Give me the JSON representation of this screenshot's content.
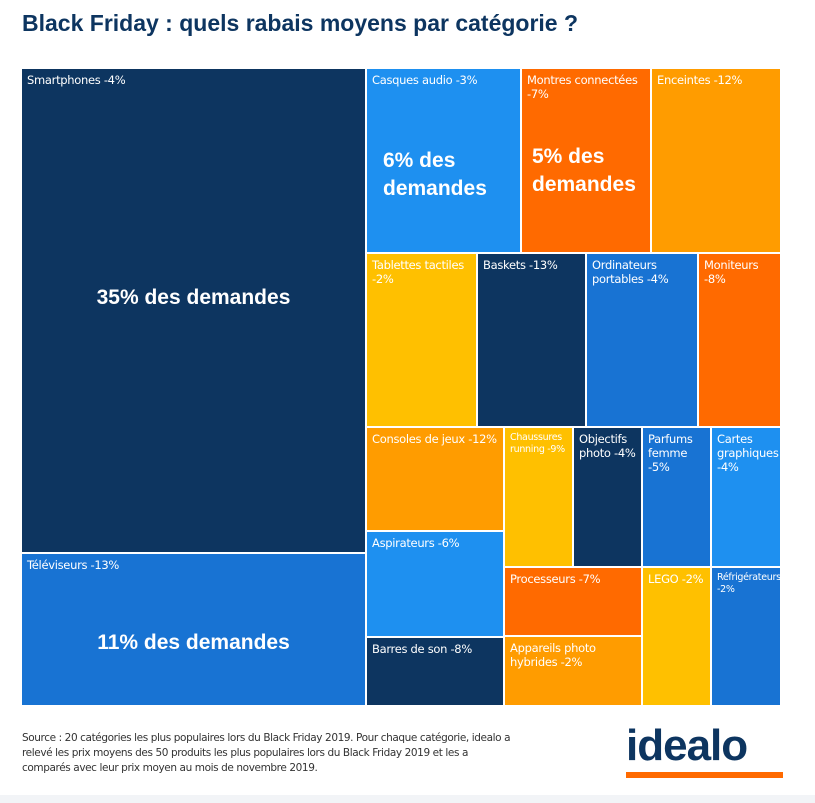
{
  "chart_data": {
    "type": "treemap",
    "title": "Black Friday : quels rabais moyens par catégorie ?",
    "colors": {
      "navy": "#0d3560",
      "blue": "#1873d3",
      "lightblue": "#1e90f0",
      "orange": "#ff6a00",
      "amber": "#ff9c00",
      "yellow": "#ffc000"
    },
    "tiles": [
      {
        "label": "Smartphones -4%",
        "category": "Smartphones",
        "discount_pct": -4,
        "share_label": "35% des demandes",
        "share_pct": 35,
        "color": "#0d3560"
      },
      {
        "label": "Téléviseurs -13%",
        "category": "Téléviseurs",
        "discount_pct": -13,
        "share_label": "11% des demandes",
        "share_pct": 11,
        "color": "#1873d3"
      },
      {
        "label": "Casques audio -3%",
        "category": "Casques audio",
        "discount_pct": -3,
        "share_label": "6% des demandes",
        "share_pct": 6,
        "color": "#1e90f0"
      },
      {
        "label": "Montres connectées -7%",
        "category": "Montres connectées",
        "discount_pct": -7,
        "share_label": "5% des demandes",
        "share_pct": 5,
        "color": "#ff6a00"
      },
      {
        "label": "Enceintes -12%",
        "category": "Enceintes",
        "discount_pct": -12,
        "color": "#ff9c00"
      },
      {
        "label": "Tablettes tactiles -2%",
        "category": "Tablettes tactiles",
        "discount_pct": -2,
        "color": "#ffc000"
      },
      {
        "label": "Baskets -13%",
        "category": "Baskets",
        "discount_pct": -13,
        "color": "#0d3560"
      },
      {
        "label": "Ordinateurs portables -4%",
        "category": "Ordinateurs portables",
        "discount_pct": -4,
        "color": "#1873d3"
      },
      {
        "label": "Moniteurs -8%",
        "category": "Moniteurs",
        "discount_pct": -8,
        "color": "#ff6a00"
      },
      {
        "label": "Consoles de jeux -12%",
        "category": "Consoles de jeux",
        "discount_pct": -12,
        "color": "#ff9c00"
      },
      {
        "label": "Aspirateurs -6%",
        "category": "Aspirateurs",
        "discount_pct": -6,
        "color": "#1e90f0"
      },
      {
        "label": "Barres de son -8%",
        "category": "Barres de son",
        "discount_pct": -8,
        "color": "#0d3560"
      },
      {
        "label": "Chaussures running -9%",
        "category": "Chaussures running",
        "discount_pct": -9,
        "color": "#ffc000"
      },
      {
        "label": "Objectifs photo -4%",
        "category": "Objectifs photo",
        "discount_pct": -4,
        "color": "#0d3560"
      },
      {
        "label": "Parfums femme -5%",
        "category": "Parfums femme",
        "discount_pct": -5,
        "color": "#1873d3"
      },
      {
        "label": "Cartes graphiques -4%",
        "category": "Cartes graphiques",
        "discount_pct": -4,
        "color": "#1e90f0"
      },
      {
        "label": "Processeurs -7%",
        "category": "Processeurs",
        "discount_pct": -7,
        "color": "#ff6a00"
      },
      {
        "label": "Appareils photo hybrides -2%",
        "category": "Appareils photo hybrides",
        "discount_pct": -2,
        "color": "#ff9c00"
      },
      {
        "label": "LEGO -2%",
        "category": "LEGO",
        "discount_pct": -2,
        "color": "#ffc000"
      },
      {
        "label": "Réfrigérateurs -2%",
        "category": "Réfrigérateurs",
        "discount_pct": -2,
        "color": "#1873d3"
      }
    ]
  },
  "source": "Source : 20 catégories les plus populaires lors du Black Friday 2019. Pour chaque catégorie, idealo a relevé les prix moyens des 50 produits les plus populaires lors du Black Friday 2019 et les a comparés avec  leur prix moyen au mois de novembre 2019.",
  "logo": "idealo"
}
